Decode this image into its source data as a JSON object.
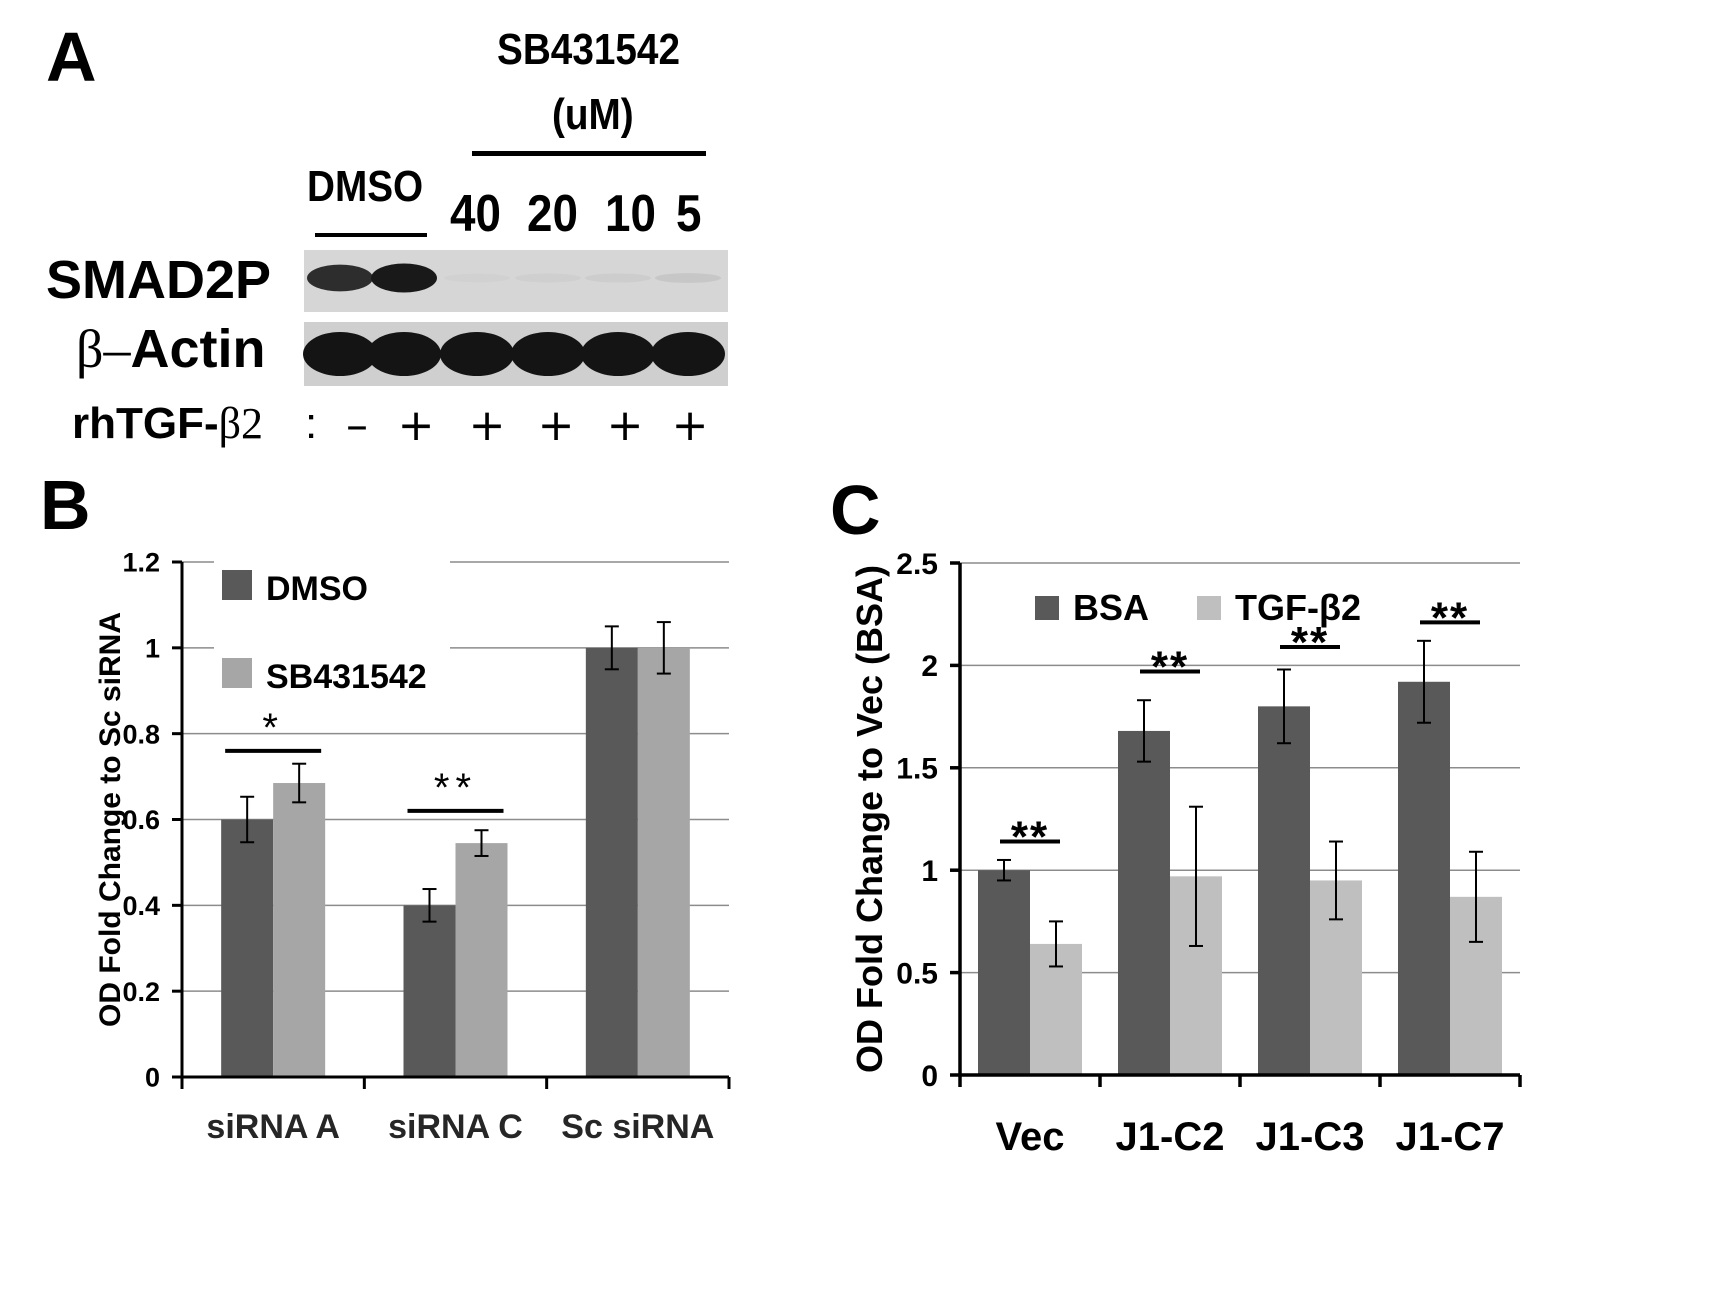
{
  "panel_a": {
    "letter": "A",
    "treatment_header_line1": "SB431542",
    "treatment_header_line2": "(uM)",
    "control_label": "DMSO",
    "concentrations": [
      "40",
      "20",
      "10",
      "5"
    ],
    "row_labels": {
      "smad2p": "SMAD2P",
      "actin_beta": "β–",
      "actin": "Actin"
    },
    "stimulus_label": "rhTGF-",
    "stimulus_beta": "β2",
    "stimulus_colon": ":",
    "stimulus_signs": [
      "–",
      "+",
      "+",
      "+",
      "+",
      "+"
    ],
    "smad2p_band_intensity": [
      0.85,
      0.95,
      0.03,
      0.04,
      0.05,
      0.08
    ],
    "actin_band_intensity": [
      1,
      1,
      1,
      1,
      1,
      1
    ]
  },
  "panel_b": {
    "letter": "B",
    "chart_data": {
      "type": "bar",
      "categories": [
        "siRNA A",
        "siRNA C",
        "Sc siRNA"
      ],
      "series": [
        {
          "name": "DMSO",
          "values": [
            0.6,
            0.4,
            1.0
          ],
          "errors": [
            0.053,
            0.038,
            0.05
          ],
          "color": "#595959"
        },
        {
          "name": "SB431542",
          "values": [
            0.685,
            0.545,
            1.0
          ],
          "errors": [
            0.045,
            0.03,
            0.06
          ],
          "color": "#a6a6a6"
        }
      ],
      "ylabel": "OD Fold Change to Sc siRNA",
      "ylim": [
        0,
        1.2
      ],
      "yticks": [
        "0",
        "0.2",
        "0.4",
        "0.6",
        "0.8",
        "1",
        "1.2"
      ],
      "ytick_values": [
        0,
        0.2,
        0.4,
        0.6,
        0.8,
        1.0,
        1.2
      ],
      "grid": true,
      "legend_position": "top-left",
      "significance": [
        {
          "category_index": 0,
          "label": "*",
          "y": 0.76
        },
        {
          "category_index": 1,
          "label": "**",
          "y": 0.62
        }
      ]
    }
  },
  "panel_c": {
    "letter": "C",
    "chart_data": {
      "type": "bar",
      "categories": [
        "Vec",
        "J1-C2",
        "J1-C3",
        "J1-C7"
      ],
      "series": [
        {
          "name": "BSA",
          "values": [
            1.0,
            1.68,
            1.8,
            1.92
          ],
          "errors": [
            0.05,
            0.15,
            0.18,
            0.2
          ],
          "color": "#595959"
        },
        {
          "name": "TGF-β2",
          "values": [
            0.64,
            0.97,
            0.95,
            0.87
          ],
          "errors": [
            0.11,
            0.34,
            0.19,
            0.22
          ],
          "color": "#bfbfbf"
        }
      ],
      "ylabel": "OD  Fold Change to Vec (BSA)",
      "ylim": [
        0,
        2.5
      ],
      "yticks": [
        "0",
        "0.5",
        "1",
        "1.5",
        "2",
        "2.5"
      ],
      "ytick_values": [
        0,
        0.5,
        1.0,
        1.5,
        2.0,
        2.5
      ],
      "grid": true,
      "legend_position": "top",
      "significance": [
        {
          "category_index": 0,
          "label": "**",
          "y": 1.14
        },
        {
          "category_index": 1,
          "label": "**",
          "y": 1.97
        },
        {
          "category_index": 2,
          "label": "**",
          "y": 2.09
        },
        {
          "category_index": 3,
          "label": "**",
          "y": 2.21
        }
      ]
    }
  }
}
